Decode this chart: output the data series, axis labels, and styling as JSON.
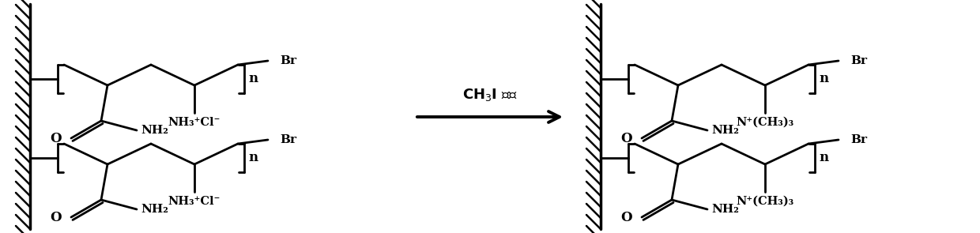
{
  "fig_width": 12.4,
  "fig_height": 2.95,
  "dpi": 100,
  "bg_color": "#ffffff",
  "line_color": "#000000",
  "line_width": 2.0,
  "arrow_label_top": "CH₃I 过量",
  "left_label1": "NH₃⁺Cl⁻",
  "right_label1": "N⁺(CH₃)₃",
  "n_label": "n",
  "br_label": "Br",
  "o_label": "O",
  "nh2_label": "NH₂"
}
